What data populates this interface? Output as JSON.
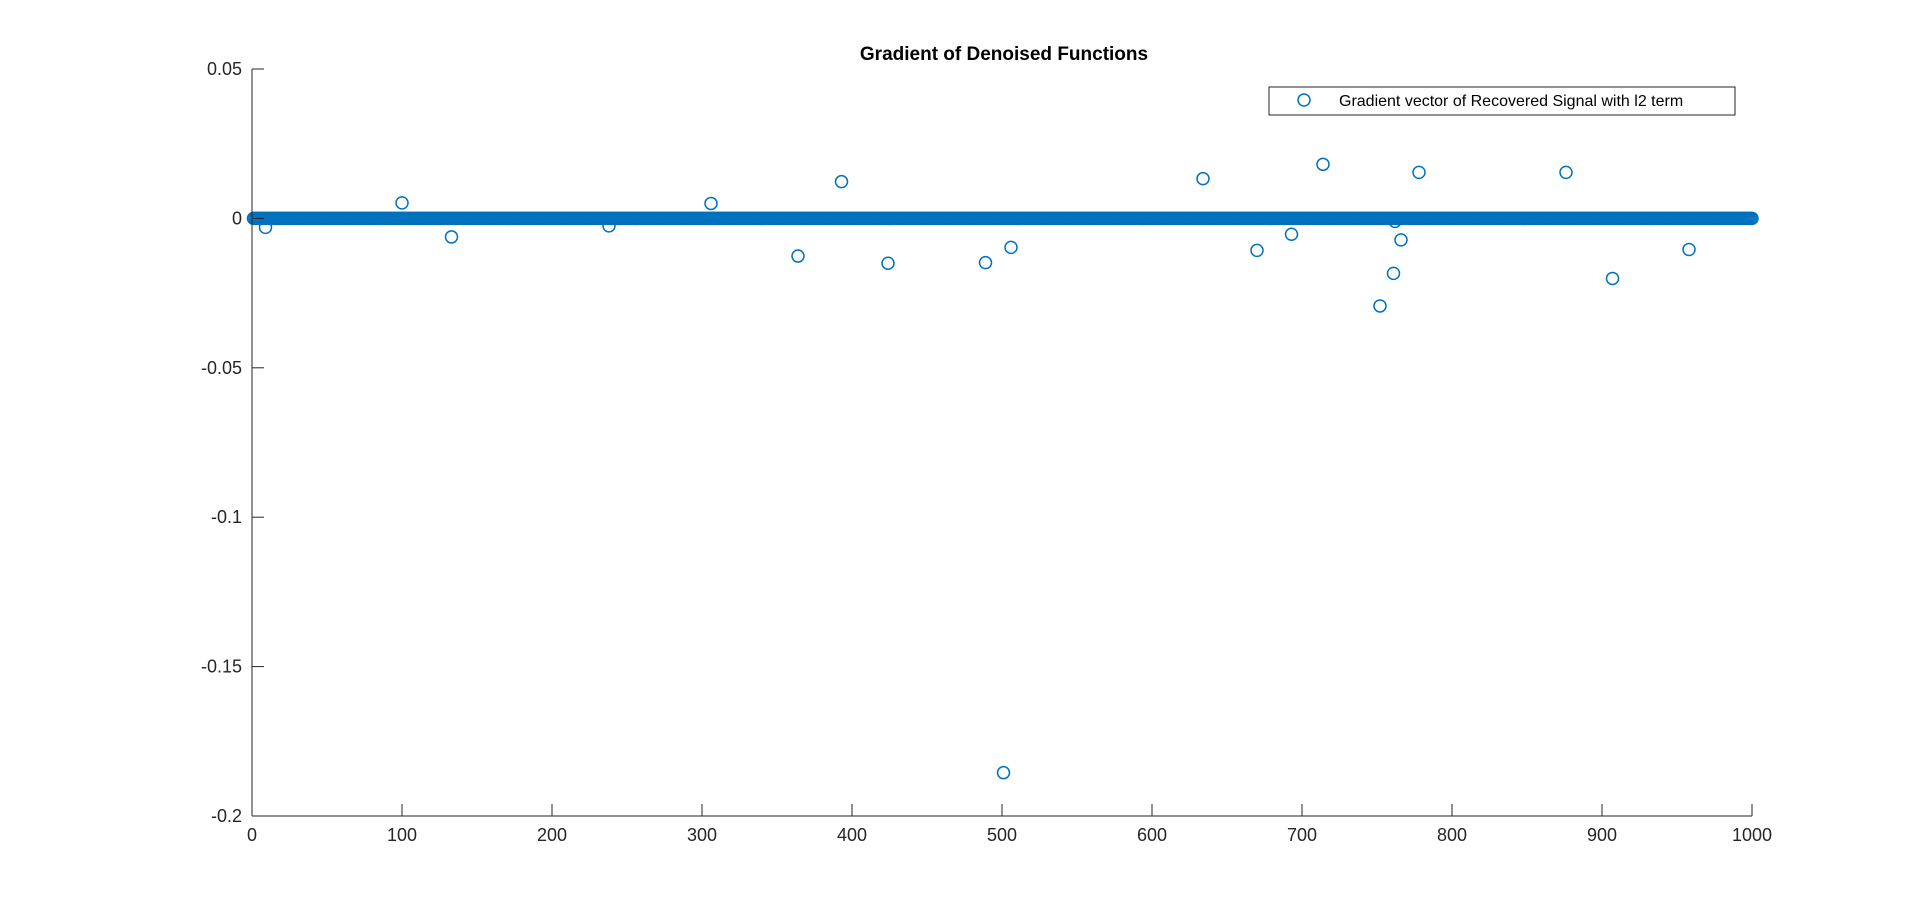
{
  "chart_data": {
    "type": "scatter",
    "title": "Gradient of Denoised Functions",
    "xlabel": "",
    "ylabel": "",
    "xlim": [
      0,
      1000
    ],
    "ylim": [
      -0.2,
      0.05
    ],
    "xticks": [
      0,
      100,
      200,
      300,
      400,
      500,
      600,
      700,
      800,
      900,
      1000
    ],
    "xtick_labels": [
      "0",
      "100",
      "200",
      "300",
      "400",
      "500",
      "600",
      "700",
      "800",
      "900",
      "1000"
    ],
    "yticks": [
      -0.2,
      -0.15,
      -0.1,
      -0.05,
      0,
      0.05
    ],
    "ytick_labels": [
      "-0.2",
      "-0.15",
      "-0.1",
      "-0.05",
      "0",
      "0.05"
    ],
    "grid": false,
    "legend_position": "top-right",
    "marker": "open-circle",
    "series": [
      {
        "name": "Gradient vector of Recovered Signal with l2 term",
        "color": "#0072BD",
        "baseline": {
          "x_start": 1,
          "x_end": 1000,
          "y": 0
        },
        "points": [
          {
            "x": 9,
            "y": -0.003
          },
          {
            "x": 100,
            "y": 0.0052
          },
          {
            "x": 133,
            "y": -0.0062
          },
          {
            "x": 238,
            "y": -0.0025
          },
          {
            "x": 306,
            "y": 0.005
          },
          {
            "x": 364,
            "y": -0.0126
          },
          {
            "x": 393,
            "y": 0.0123
          },
          {
            "x": 424,
            "y": -0.015
          },
          {
            "x": 489,
            "y": -0.0148
          },
          {
            "x": 501,
            "y": -0.1855
          },
          {
            "x": 506,
            "y": -0.0097
          },
          {
            "x": 634,
            "y": 0.0133
          },
          {
            "x": 670,
            "y": -0.0107
          },
          {
            "x": 693,
            "y": -0.0053
          },
          {
            "x": 714,
            "y": 0.0181
          },
          {
            "x": 752,
            "y": -0.0293
          },
          {
            "x": 761,
            "y": -0.0184
          },
          {
            "x": 762,
            "y": -0.001
          },
          {
            "x": 766,
            "y": -0.0072
          },
          {
            "x": 778,
            "y": 0.0154
          },
          {
            "x": 876,
            "y": 0.0154
          },
          {
            "x": 907,
            "y": -0.0201
          },
          {
            "x": 958,
            "y": -0.0104
          }
        ]
      }
    ]
  }
}
